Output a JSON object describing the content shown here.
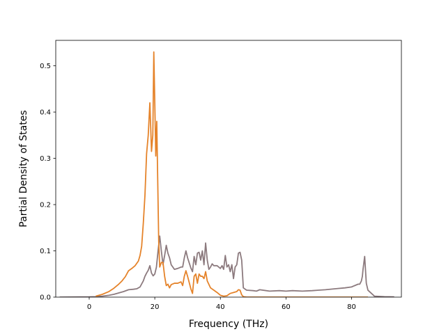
{
  "chart_data": {
    "type": "line",
    "title": "",
    "xlabel": "Frequency (THz)",
    "ylabel": "Partial Density of States",
    "xlim": [
      -10.2,
      95.2
    ],
    "ylim": [
      0,
      0.555
    ],
    "xticks": [
      0,
      20,
      40,
      60,
      80
    ],
    "yticks": [
      0.0,
      0.1,
      0.2,
      0.3,
      0.4,
      0.5
    ],
    "xtick_labels": [
      "0",
      "20",
      "40",
      "60",
      "80"
    ],
    "ytick_labels": [
      "0.0",
      "0.1",
      "0.2",
      "0.3",
      "0.4",
      "0.5"
    ],
    "grid": false,
    "legend": null,
    "series": [
      {
        "color": "#8c7a7e",
        "x": [
          -9,
          0,
          2,
          4,
          6,
          7.5,
          9,
          10.5,
          12,
          13.5,
          14.5,
          15.5,
          16.5,
          17,
          17.5,
          18,
          18.5,
          19,
          19.5,
          20,
          20.5,
          21,
          21.5,
          22,
          22.5,
          23,
          23.5,
          24,
          24.5,
          25,
          26,
          27,
          28,
          28.5,
          29,
          29.5,
          30,
          31,
          31.5,
          32,
          32.5,
          33,
          33.5,
          34,
          34.5,
          35,
          35.5,
          36,
          36.5,
          37,
          37.5,
          38,
          39,
          40,
          40.5,
          41,
          41.5,
          42,
          42.5,
          43,
          43.5,
          44,
          44.5,
          45,
          45.5,
          46,
          46.5,
          47,
          48,
          50,
          51,
          52,
          55,
          58,
          60,
          62,
          65,
          68,
          70,
          72,
          75,
          78,
          80,
          81,
          82,
          82.5,
          83,
          83.3,
          83.5,
          84,
          84.5,
          85,
          87,
          90,
          93
        ],
        "y": [
          0,
          0.0005,
          0.001,
          0.002,
          0.004,
          0.006,
          0.009,
          0.012,
          0.016,
          0.017,
          0.018,
          0.022,
          0.035,
          0.045,
          0.052,
          0.058,
          0.068,
          0.052,
          0.046,
          0.05,
          0.065,
          0.1,
          0.132,
          0.1,
          0.07,
          0.09,
          0.112,
          0.095,
          0.085,
          0.07,
          0.06,
          0.062,
          0.065,
          0.065,
          0.085,
          0.1,
          0.085,
          0.063,
          0.055,
          0.088,
          0.07,
          0.095,
          0.097,
          0.08,
          0.1,
          0.07,
          0.117,
          0.08,
          0.06,
          0.065,
          0.072,
          0.068,
          0.068,
          0.062,
          0.068,
          0.06,
          0.09,
          0.065,
          0.07,
          0.055,
          0.07,
          0.04,
          0.065,
          0.07,
          0.095,
          0.097,
          0.08,
          0.02,
          0.015,
          0.014,
          0.013,
          0.016,
          0.013,
          0.014,
          0.013,
          0.014,
          0.013,
          0.014,
          0.015,
          0.016,
          0.018,
          0.02,
          0.022,
          0.025,
          0.028,
          0.028,
          0.035,
          0.045,
          0.06,
          0.088,
          0.03,
          0.015,
          0.002,
          0.001,
          0.0005
        ]
      },
      {
        "color": "#e5832a",
        "x": [
          2,
          4,
          6,
          7.5,
          9,
          10,
          11,
          12,
          13,
          14,
          15,
          15.5,
          16,
          16.5,
          17,
          17.5,
          18,
          18.5,
          19,
          19.4,
          19.7,
          20,
          20.3,
          20.6,
          20.9,
          21.2,
          21.5,
          22,
          22.5,
          23,
          23.5,
          24,
          24.5,
          25,
          26,
          27,
          28,
          28.5,
          29,
          29.5,
          30,
          31,
          31.5,
          32,
          32.5,
          33,
          33.5,
          34,
          34.5,
          35,
          35.5,
          36,
          37,
          38,
          39,
          40,
          41,
          42,
          43,
          44,
          45,
          45.5,
          46,
          46.5,
          47,
          48,
          50,
          55,
          60,
          70,
          80,
          85
        ],
        "y": [
          0.002,
          0.006,
          0.012,
          0.019,
          0.028,
          0.035,
          0.044,
          0.057,
          0.062,
          0.068,
          0.078,
          0.09,
          0.11,
          0.16,
          0.22,
          0.31,
          0.35,
          0.42,
          0.315,
          0.35,
          0.53,
          0.42,
          0.305,
          0.38,
          0.25,
          0.12,
          0.065,
          0.075,
          0.075,
          0.045,
          0.025,
          0.028,
          0.02,
          0.027,
          0.03,
          0.03,
          0.033,
          0.025,
          0.045,
          0.057,
          0.045,
          0.018,
          0.008,
          0.045,
          0.05,
          0.03,
          0.05,
          0.045,
          0.045,
          0.04,
          0.055,
          0.035,
          0.02,
          0.015,
          0.01,
          0.004,
          0.002,
          0.003,
          0.008,
          0.01,
          0.012,
          0.016,
          0.015,
          0.005,
          0.001,
          0,
          0,
          0,
          0,
          0,
          0,
          0
        ]
      }
    ]
  }
}
